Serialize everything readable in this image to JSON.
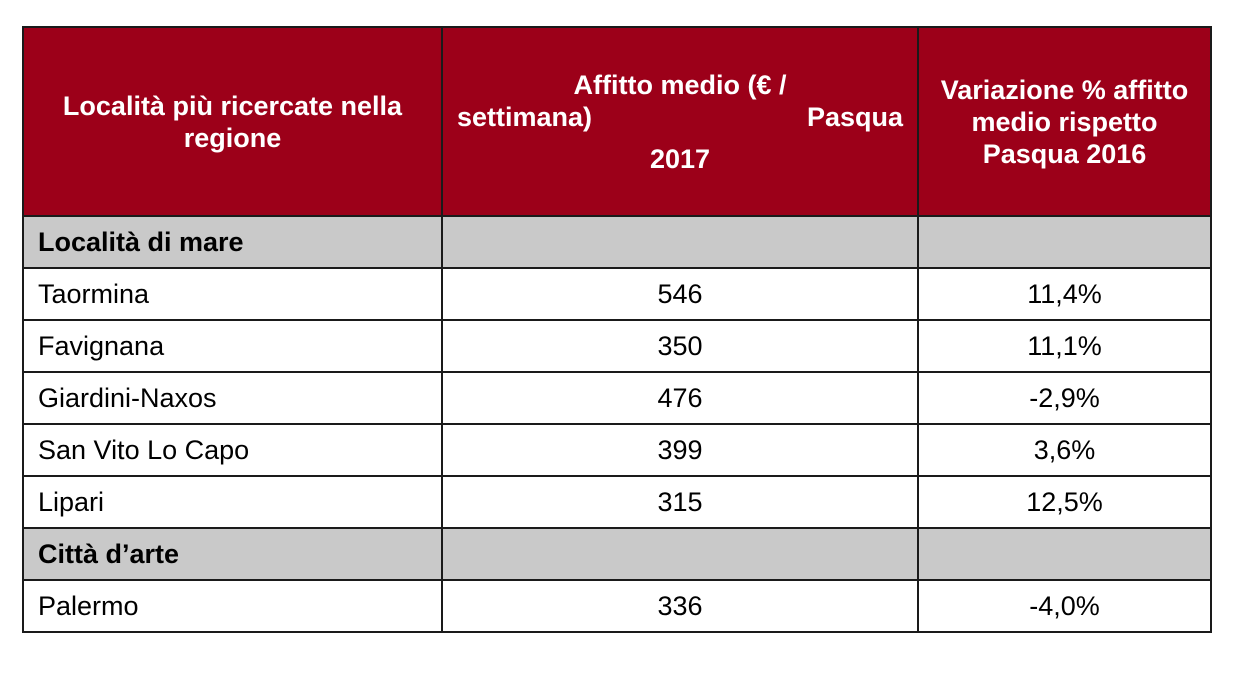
{
  "headers": {
    "col1": "Località più ricercate nella regione",
    "col2_line1": "Affitto medio (€ /",
    "col2_line2_left": "settimana)",
    "col2_line2_right": "Pasqua",
    "col2_line3": "2017",
    "col3": "Variazione % affitto medio rispetto Pasqua 2016"
  },
  "sections": [
    {
      "title": "Località di mare",
      "rows": [
        {
          "name": "Taormina",
          "rent": "546",
          "change": "11,4%"
        },
        {
          "name": "Favignana",
          "rent": "350",
          "change": "11,1%"
        },
        {
          "name": "Giardini-Naxos",
          "rent": "476",
          "change": "-2,9%"
        },
        {
          "name": "San Vito Lo Capo",
          "rent": "399",
          "change": "3,6%"
        },
        {
          "name": "Lipari",
          "rent": "315",
          "change": "12,5%"
        }
      ]
    },
    {
      "title": "Città d’arte",
      "rows": [
        {
          "name": "Palermo",
          "rent": "336",
          "change": "-4,0%"
        }
      ]
    }
  ],
  "colors": {
    "header_bg": "#9c0019",
    "section_bg": "#c9c9c9"
  }
}
